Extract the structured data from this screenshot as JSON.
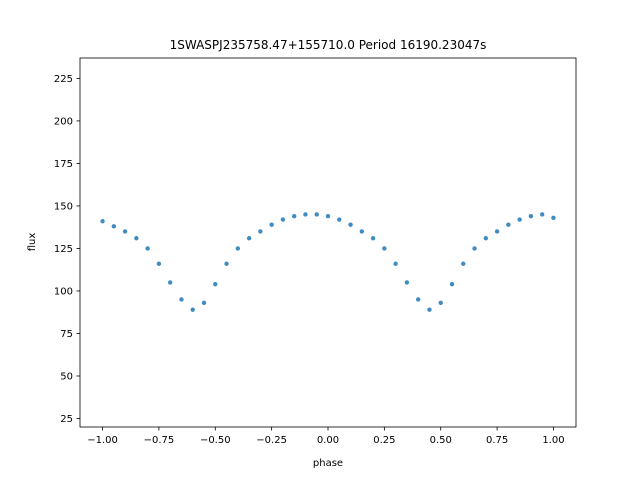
{
  "chart_data": {
    "type": "scatter",
    "title": "1SWASPJ235758.47+155710.0 Period 16190.23047s",
    "xlabel": "phase",
    "ylabel": "flux",
    "xlim": [
      -1.1,
      1.1
    ],
    "ylim": [
      20,
      237
    ],
    "xticks": [
      -1.0,
      -0.75,
      -0.5,
      -0.25,
      0.0,
      0.25,
      0.5,
      0.75,
      1.0
    ],
    "xtick_labels": [
      "−1.00",
      "−0.75",
      "−0.50",
      "−0.25",
      "0.00",
      "0.25",
      "0.50",
      "0.75",
      "1.00"
    ],
    "yticks": [
      25,
      50,
      75,
      100,
      125,
      150,
      175,
      200,
      225
    ],
    "ytick_labels": [
      "25",
      "50",
      "75",
      "100",
      "125",
      "150",
      "175",
      "200",
      "225"
    ],
    "grid": false,
    "marker_color": "#1f77b4",
    "series": [
      {
        "x": [
          -1.0,
          -0.95,
          -0.9,
          -0.85,
          -0.8,
          -0.75,
          -0.7,
          -0.65,
          -0.6,
          -0.55,
          -0.5,
          -0.45,
          -0.4,
          -0.35,
          -0.3,
          -0.25,
          -0.2,
          -0.15,
          -0.1,
          -0.05,
          0.0,
          0.05,
          0.1,
          0.15,
          0.2,
          0.25,
          0.3,
          0.35,
          0.4,
          0.45,
          0.5,
          0.55,
          0.6,
          0.65,
          0.7,
          0.75,
          0.8,
          0.85,
          0.9,
          0.95,
          1.0
        ],
        "y": [
          141,
          138,
          135,
          131,
          125,
          116,
          105,
          95,
          89,
          93,
          104,
          116,
          125,
          131,
          135,
          139,
          142,
          144,
          145,
          145,
          144,
          142,
          139,
          135,
          131,
          125,
          116,
          105,
          95,
          89,
          93,
          104,
          116,
          125,
          131,
          135,
          139,
          142,
          144,
          145,
          143
        ]
      }
    ]
  }
}
